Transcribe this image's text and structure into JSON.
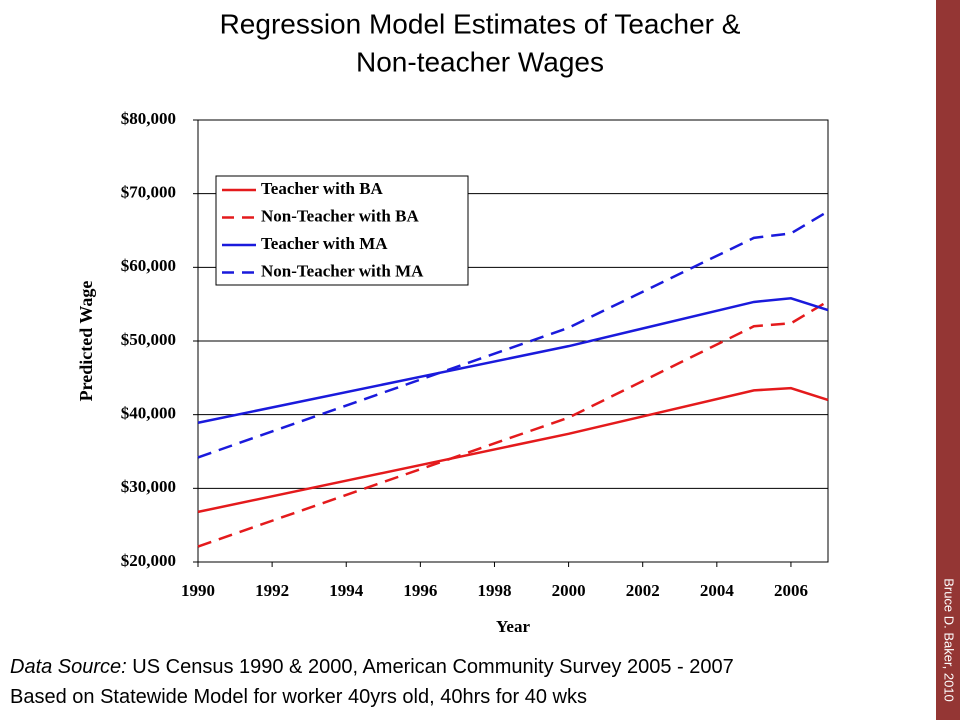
{
  "chart_data": {
    "type": "line",
    "title_lines": [
      "Regression Model Estimates of Teacher &",
      "Non-teacher Wages"
    ],
    "x_label": "Year",
    "y_label": "Predicted Wage",
    "x": [
      1990,
      2000,
      2005,
      2006,
      2007
    ],
    "series": [
      {
        "name": "Teacher with BA",
        "color": "#e41a1c",
        "dash": false,
        "values": [
          26800,
          37400,
          43300,
          43600,
          42000
        ]
      },
      {
        "name": "Non-Teacher with BA",
        "color": "#e41a1c",
        "dash": true,
        "values": [
          22100,
          39600,
          52000,
          52400,
          55400
        ]
      },
      {
        "name": "Teacher with MA",
        "color": "#1a1adc",
        "dash": false,
        "values": [
          38900,
          49300,
          55300,
          55800,
          54200
        ]
      },
      {
        "name": "Non-Teacher with MA",
        "color": "#1a1adc",
        "dash": true,
        "values": [
          34200,
          51800,
          64000,
          64600,
          67600
        ]
      }
    ],
    "xlim": [
      1990,
      2007
    ],
    "xticks": [
      1990,
      1992,
      1994,
      1996,
      1998,
      2000,
      2002,
      2004,
      2006
    ],
    "ylim": [
      20000,
      80000
    ],
    "yticks": [
      {
        "value": 20000,
        "label": "$20,000"
      },
      {
        "value": 30000,
        "label": "$30,000"
      },
      {
        "value": 40000,
        "label": "$40,000"
      },
      {
        "value": 50000,
        "label": "$50,000"
      },
      {
        "value": 60000,
        "label": "$60,000"
      },
      {
        "value": 70000,
        "label": "$70,000"
      },
      {
        "value": 80000,
        "label": "$80,000"
      }
    ],
    "grid": true,
    "legend": "upper left"
  },
  "footnote": {
    "source_label": "Data Source:",
    "source_text": "US Census 1990 & 2000, American Community Survey 2005 - 2007",
    "model_text": "Based on Statewide Model for worker 40yrs old, 40hrs for 40 wks"
  },
  "side_label": "Bruce D. Baker, 2010"
}
